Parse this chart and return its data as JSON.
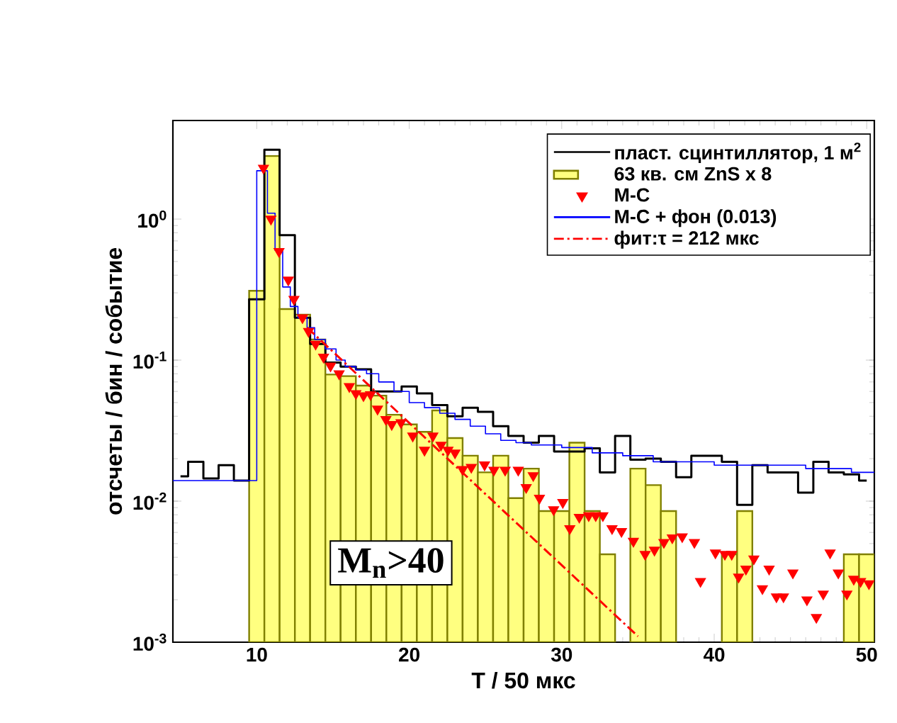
{
  "chart_data": {
    "type": "histogram",
    "xlabel": "T / 50 мкс",
    "ylabel": "отсчеты / бин / событие",
    "xlim": [
      4.5,
      50.5
    ],
    "xticks": [
      10,
      20,
      30,
      40,
      50
    ],
    "ylim": [
      0.001,
      5
    ],
    "yticks": [
      {
        "value": 0.001,
        "label": "10$^{-3}$"
      },
      {
        "value": 0.01,
        "label": "10$^{-2}$"
      },
      {
        "value": 0.1,
        "label": "10$^{-1}$"
      },
      {
        "value": 1,
        "label": "10$^{0}$"
      }
    ],
    "log": "y",
    "legend": "top right",
    "annotations": [
      "M$_{n}$>40"
    ],
    "series": [
      {
        "name": "пласт. сцинтиллятор, 1 м$^{2}$",
        "type": "step",
        "color": "#000000",
        "x": [
          5,
          6,
          7,
          8,
          9,
          10,
          11,
          12,
          13,
          14,
          15,
          16,
          17,
          18,
          19,
          20,
          21,
          22,
          23,
          24,
          25,
          26,
          27,
          28,
          29,
          30,
          31,
          32,
          33,
          34,
          35,
          36,
          37,
          38,
          39,
          40,
          41,
          42,
          43,
          44,
          45,
          46,
          47,
          48,
          49,
          50
        ],
        "values": [
          0.015,
          0.019,
          0.0145,
          0.018,
          0.014,
          0.27,
          3.1,
          0.77,
          0.2,
          0.13,
          0.096,
          0.09,
          0.086,
          0.06,
          0.06,
          0.065,
          0.058,
          0.048,
          0.04,
          0.046,
          0.043,
          0.034,
          0.029,
          0.026,
          0.029,
          0.0225,
          0.0225,
          0.0237,
          0.016,
          0.029,
          0.0197,
          0.02,
          0.019,
          0.0148,
          0.021,
          0.021,
          0.019,
          0.0094,
          0.018,
          0.016,
          0.016,
          0.0115,
          0.019,
          0.016,
          0.0155,
          0.014
        ]
      },
      {
        "name": "63 кв. см ZnS x 8",
        "color": "#ffff80",
        "bins": [
          9.5,
          10.5,
          11.5,
          12.5,
          13.5,
          14.5,
          15.5,
          16.5,
          17.5,
          18.5,
          19.5,
          20.5,
          21.5,
          22.5,
          23.5,
          24.5,
          25.5,
          26.5,
          27.5,
          28.5,
          29.5,
          30.5,
          31.5,
          32.5,
          33.5,
          34.5,
          35.5,
          36.5,
          37.5,
          38.5,
          39.5,
          40.5,
          41.5,
          42.5,
          43.5,
          44.5,
          45.5,
          46.5,
          47.5,
          48.5,
          49.5,
          50.5
        ],
        "values": [
          0.31,
          2.8,
          0.23,
          0.21,
          0.14,
          0.079,
          0.077,
          0.066,
          0.056,
          0.041,
          0.035,
          0.031,
          0.044,
          0.028,
          0.021,
          0.016,
          0.021,
          0.0105,
          0.017,
          0.0085,
          0.0085,
          0.026,
          0.0085,
          0.0042,
          null,
          0.017,
          0.013,
          0.0085,
          null,
          null,
          null,
          0.0042,
          0.0085,
          null,
          null,
          null,
          null,
          null,
          null,
          0.0042,
          0.0042
        ]
      },
      {
        "name": "М-С",
        "type": "scatter",
        "marker": "triangle",
        "color": "#ff0000",
        "x": [
          10.44,
          10.93,
          11.46,
          12.07,
          12.44,
          13.0,
          13.4,
          13.86,
          14.38,
          14.84,
          15.4,
          16.07,
          16.5,
          17.0,
          17.46,
          17.92,
          18.47,
          18.85,
          19.46,
          20.23,
          21.0,
          21.55,
          22.08,
          22.54,
          23.0,
          23.5,
          24.07,
          24.94,
          25.55,
          26.29,
          27.15,
          27.67,
          28.13,
          28.54,
          29.47,
          30.07,
          30.53,
          31.15,
          31.77,
          32.23,
          32.7,
          33.3,
          33.92,
          34.7,
          35.47,
          36.08,
          36.7,
          37.25,
          37.9,
          38.7,
          39.1,
          40.08,
          40.7,
          41.15,
          41.6,
          42.08,
          42.6,
          43.16,
          43.6,
          44.08,
          44.54,
          45.16,
          46.08,
          46.7,
          47.15,
          47.6,
          48.14,
          48.7,
          49.15,
          49.6,
          50.15
        ],
        "values": [
          2.3,
          1.0,
          0.59,
          0.37,
          0.27,
          0.2,
          0.16,
          0.13,
          0.105,
          0.091,
          0.08,
          0.065,
          0.058,
          0.056,
          0.057,
          0.045,
          0.038,
          0.035,
          0.036,
          0.029,
          0.023,
          0.029,
          0.025,
          0.023,
          0.022,
          0.0168,
          0.0174,
          0.0181,
          0.0166,
          0.0166,
          0.0166,
          0.0125,
          0.0152,
          0.0105,
          0.0087,
          0.0098,
          0.0064,
          0.0077,
          0.0079,
          0.0079,
          0.0079,
          0.0064,
          0.0061,
          0.0052,
          0.0042,
          0.0045,
          0.0051,
          0.0055,
          0.0056,
          0.0051,
          0.0027,
          0.0043,
          0.0042,
          0.0042,
          0.0029,
          0.0033,
          0.0039,
          0.0024,
          0.0033,
          0.0021,
          0.0021,
          0.0031,
          0.002,
          0.0015,
          0.0022,
          0.0043,
          0.0031,
          0.0022,
          0.0028,
          0.0027,
          0.0026
        ]
      },
      {
        "name": "М-С + фон (0.013)",
        "type": "step",
        "color": "#0000ff",
        "x": [
          4.5,
          10.0,
          10.7,
          11.2,
          11.7,
          12.2,
          12.7,
          13.3,
          13.8,
          14.5,
          15.2,
          15.8,
          16.5,
          17.2,
          18,
          19,
          20,
          21,
          22,
          23,
          24,
          25,
          26,
          27,
          28,
          30,
          32,
          34,
          36,
          38,
          40,
          43,
          46,
          49,
          50.5
        ],
        "values": [
          0.014,
          2.2,
          1.1,
          0.6,
          0.33,
          0.24,
          0.2,
          0.17,
          0.14,
          0.12,
          0.1,
          0.09,
          0.085,
          0.08,
          0.07,
          0.06,
          0.05,
          0.046,
          0.042,
          0.038,
          0.034,
          0.03,
          0.027,
          0.026,
          0.025,
          0.024,
          0.022,
          0.021,
          0.019,
          0.019,
          0.018,
          0.018,
          0.017,
          0.016,
          0.016
        ]
      },
      {
        "name": "фит:τ = 212 мкс",
        "type": "line",
        "line_style": "dashed",
        "color": "#ff0000",
        "x": [
          13.3,
          35.0
        ],
        "values": [
          0.17,
          0.0011
        ]
      }
    ]
  }
}
